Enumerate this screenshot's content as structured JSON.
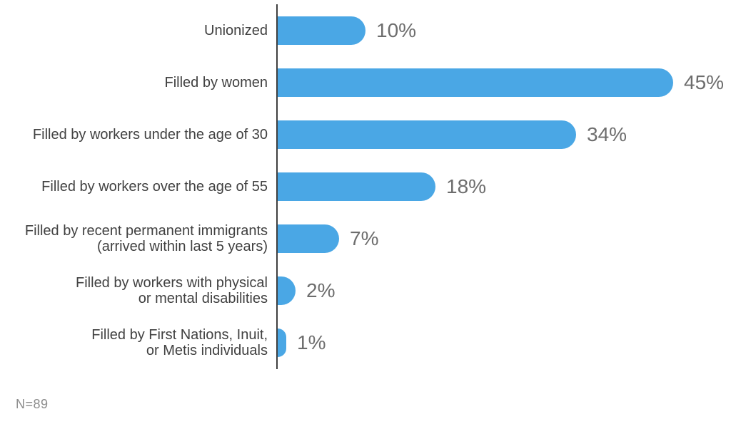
{
  "chart_data": {
    "type": "bar",
    "orientation": "horizontal",
    "title": "",
    "xlabel": "",
    "ylabel": "",
    "xlim": [
      0,
      46
    ],
    "grid": false,
    "legend": null,
    "categories": [
      "Unionized",
      "Filled by women",
      "Filled by workers under the age of 30",
      "Filled by workers over the age of 55",
      "Filled by recent permanent immigrants (arrived within last 5 years)",
      "Filled by workers with physical or mental disabilities",
      "Filled by First Nations, Inuit, or Metis individuals"
    ],
    "label_lines": [
      [
        "Unionized"
      ],
      [
        "Filled by women"
      ],
      [
        "Filled by workers under the age of 30"
      ],
      [
        "Filled by workers over the age of 55"
      ],
      [
        "Filled by recent permanent immigrants",
        "(arrived within last 5 years)"
      ],
      [
        "Filled by workers with physical",
        "or mental disabilities"
      ],
      [
        "Filled by First Nations, Inuit,",
        "or Metis individuals"
      ]
    ],
    "values": [
      10,
      45,
      34,
      18,
      7,
      2,
      1
    ],
    "value_labels": [
      "10%",
      "45%",
      "34%",
      "18%",
      "7%",
      "2%",
      "1%"
    ],
    "note": "N=89",
    "colors": {
      "bar": "#4aa7e5",
      "axis": "#3f3f3f",
      "category_label": "#414141",
      "value_label": "#6d6d6d",
      "note": "#8c8c8c",
      "background": "#ffffff"
    }
  }
}
